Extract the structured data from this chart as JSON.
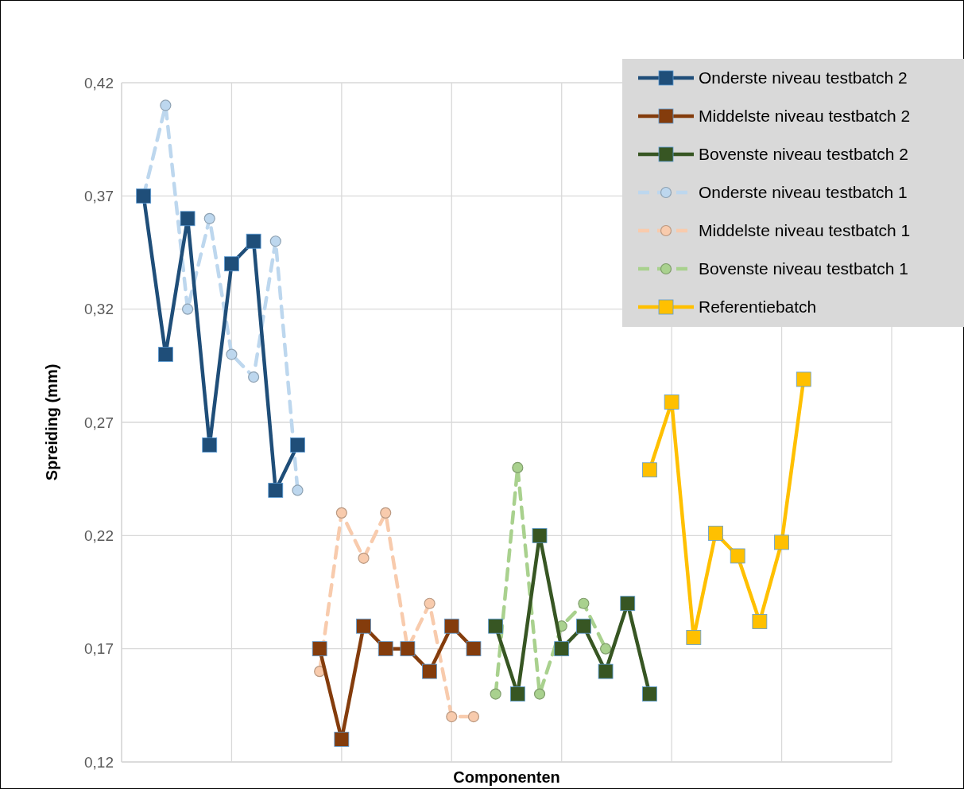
{
  "chart_data": {
    "type": "line",
    "xlabel": "Componenten",
    "ylabel": "Spreiding (mm)",
    "categories": [
      null,
      null,
      null,
      null,
      null,
      null,
      null,
      null,
      null,
      null,
      null,
      null,
      null,
      null,
      null,
      null,
      null,
      null,
      null,
      null,
      null,
      null,
      null,
      null,
      null,
      null,
      null,
      null,
      null,
      null,
      null,
      null,
      null,
      null,
      null,
      null
    ],
    "ylim": [
      0.12,
      0.42
    ],
    "yticks": [
      {
        "value": 0.12,
        "label": "0,12"
      },
      {
        "value": 0.17,
        "label": "0,17"
      },
      {
        "value": 0.22,
        "label": "0,22"
      },
      {
        "value": 0.27,
        "label": "0,27"
      },
      {
        "value": 0.32,
        "label": "0,32"
      },
      {
        "value": 0.37,
        "label": "0,37"
      },
      {
        "value": 0.42,
        "label": "0,42"
      }
    ],
    "grid": true,
    "legend": "top right",
    "series": [
      {
        "name": "Onderste niveau testbatch 1",
        "color": "#bdd7ee",
        "line_style": "dashed",
        "marker": "circle",
        "values": [
          null,
          0.37,
          0.41,
          0.32,
          0.36,
          0.3,
          0.29,
          0.35,
          0.24,
          null,
          null,
          null,
          null,
          null,
          null,
          null,
          null,
          null,
          null,
          null,
          null,
          null,
          null,
          null,
          null,
          null,
          null,
          null,
          null,
          null,
          null,
          null,
          null,
          null,
          null,
          null
        ]
      },
      {
        "name": "Middelste niveau testbatch 1",
        "color": "#f8cbad",
        "line_style": "dashed",
        "marker": "circle",
        "values": [
          null,
          null,
          null,
          null,
          null,
          null,
          null,
          null,
          null,
          0.16,
          0.23,
          0.21,
          0.23,
          0.17,
          0.19,
          0.14,
          0.14,
          null,
          null,
          null,
          null,
          null,
          null,
          null,
          null,
          null,
          null,
          null,
          null,
          null,
          null,
          null,
          null,
          null,
          null,
          null
        ]
      },
      {
        "name": "Bovenste niveau testbatch 1",
        "color": "#a9d18e",
        "line_style": "dashed",
        "marker": "circle",
        "values": [
          null,
          null,
          null,
          null,
          null,
          null,
          null,
          null,
          null,
          null,
          null,
          null,
          null,
          null,
          null,
          null,
          null,
          0.15,
          0.25,
          0.15,
          0.18,
          0.19,
          0.17,
          null,
          null,
          null,
          null,
          null,
          null,
          null,
          null,
          null,
          null,
          null,
          null,
          null
        ]
      },
      {
        "name": "Onderste niveau testbatch 2",
        "color": "#1f4e79",
        "line_style": "solid",
        "marker": "square",
        "values": [
          null,
          0.37,
          0.3,
          0.36,
          0.26,
          0.34,
          0.35,
          0.24,
          0.26,
          null,
          null,
          null,
          null,
          null,
          null,
          null,
          null,
          null,
          null,
          null,
          null,
          null,
          null,
          null,
          null,
          null,
          null,
          null,
          null,
          null,
          null,
          null,
          null,
          null,
          null,
          null
        ]
      },
      {
        "name": "Middelste niveau testbatch 2",
        "color": "#843c0c",
        "line_style": "solid",
        "marker": "square",
        "values": [
          null,
          null,
          null,
          null,
          null,
          null,
          null,
          null,
          null,
          0.17,
          0.13,
          0.18,
          0.17,
          0.17,
          0.16,
          0.18,
          0.17,
          null,
          null,
          null,
          null,
          null,
          null,
          null,
          null,
          null,
          null,
          null,
          null,
          null,
          null,
          null,
          null,
          null,
          null,
          null
        ]
      },
      {
        "name": "Bovenste niveau testbatch 2",
        "color": "#375623",
        "line_style": "solid",
        "marker": "square",
        "values": [
          null,
          null,
          null,
          null,
          null,
          null,
          null,
          null,
          null,
          null,
          null,
          null,
          null,
          null,
          null,
          null,
          null,
          0.18,
          0.15,
          0.22,
          0.17,
          0.18,
          0.16,
          0.19,
          0.15,
          null,
          null,
          null,
          null,
          null,
          null,
          null,
          null,
          null,
          null,
          null
        ]
      },
      {
        "name": "Referentiebatch",
        "color": "#ffc000",
        "line_style": "solid",
        "marker": "square",
        "values": [
          null,
          null,
          null,
          null,
          null,
          null,
          null,
          null,
          null,
          null,
          null,
          null,
          null,
          null,
          null,
          null,
          null,
          null,
          null,
          null,
          null,
          null,
          null,
          null,
          0.249,
          0.279,
          0.175,
          0.221,
          0.211,
          0.182,
          0.217,
          0.289,
          null,
          null,
          null,
          null
        ]
      }
    ]
  }
}
